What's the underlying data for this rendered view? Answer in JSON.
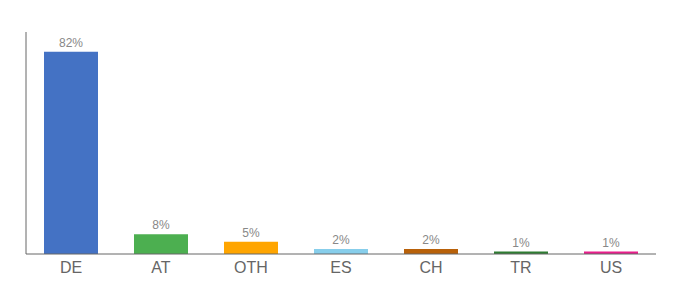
{
  "chart_data": {
    "type": "bar",
    "categories": [
      "DE",
      "AT",
      "OTH",
      "ES",
      "CH",
      "TR",
      "US"
    ],
    "values": [
      82,
      8,
      5,
      2,
      2,
      1,
      1
    ],
    "value_labels": [
      "82%",
      "8%",
      "5%",
      "2%",
      "2%",
      "1%",
      "1%"
    ],
    "colors": [
      "#4472c4",
      "#4caf50",
      "#ffa500",
      "#87ceeb",
      "#b8610a",
      "#2e7d32",
      "#e91e8c"
    ],
    "ylim": [
      0,
      90
    ],
    "grid": false,
    "data_labels": true,
    "tick_labels": "x"
  }
}
